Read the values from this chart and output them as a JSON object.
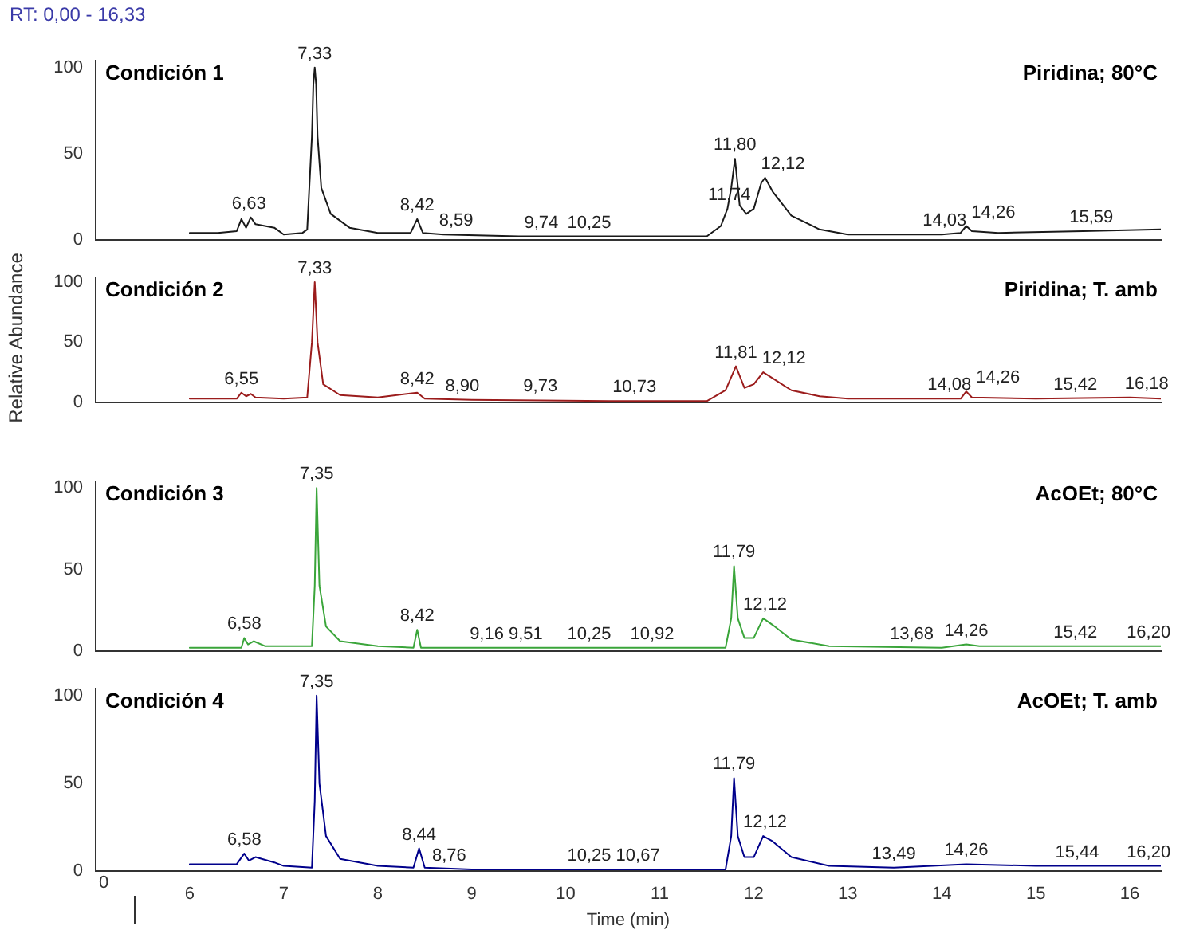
{
  "chart_data": [
    {
      "type": "line",
      "title": "Condición 1",
      "subtitle": "Piridina; 80°C",
      "annotations": [
        "RT: 0,00 - 16,33",
        {
          "text": "6,63",
          "x": 6.63,
          "y": 13
        },
        {
          "text": "7,33",
          "x": 7.33,
          "y": 100
        },
        {
          "text": "8,42",
          "x": 8.42,
          "y": 12
        },
        {
          "text": "8,59",
          "x": 8.59,
          "y": 3
        },
        {
          "text": "9,74",
          "x": 9.74,
          "y": 2
        },
        {
          "text": "10,25",
          "x": 10.25,
          "y": 2
        },
        {
          "text": "11,74",
          "x": 11.74,
          "y": 18
        },
        {
          "text": "11,80",
          "x": 11.8,
          "y": 47
        },
        {
          "text": "12,12",
          "x": 12.12,
          "y": 36
        },
        {
          "text": "14,03",
          "x": 14.03,
          "y": 3
        },
        {
          "text": "14,26",
          "x": 14.26,
          "y": 8
        },
        {
          "text": "15,59",
          "x": 15.59,
          "y": 5
        }
      ],
      "x": [
        6,
        6.3,
        6.5,
        6.55,
        6.6,
        6.65,
        6.7,
        6.9,
        7,
        7.2,
        7.25,
        7.3,
        7.315,
        7.33,
        7.345,
        7.36,
        7.4,
        7.5,
        7.7,
        8,
        8.35,
        8.42,
        8.48,
        8.7,
        9.5,
        10.5,
        11.5,
        11.65,
        11.72,
        11.76,
        11.8,
        11.85,
        11.92,
        12,
        12.08,
        12.12,
        12.2,
        12.4,
        12.7,
        13,
        14,
        14.2,
        14.26,
        14.32,
        14.6,
        15.5,
        16.33
      ],
      "series": [
        {
          "color": "#1a1a1a",
          "values": [
            4,
            4,
            5,
            12,
            7,
            13,
            9,
            7,
            3,
            4,
            6,
            60,
            90,
            100,
            90,
            60,
            30,
            15,
            7,
            4,
            4,
            12,
            4,
            3,
            2,
            2,
            2,
            8,
            18,
            30,
            47,
            20,
            15,
            18,
            33,
            36,
            28,
            14,
            6,
            3,
            3,
            4,
            8,
            5,
            4,
            5,
            6
          ]
        }
      ],
      "xlim": [
        5,
        16.33
      ],
      "xticks": [
        6,
        7,
        8,
        9,
        10,
        11,
        12,
        13,
        14,
        15,
        16
      ],
      "ylim": [
        0,
        104
      ],
      "yticks": [
        0,
        50,
        100
      ],
      "tick_labels": "y",
      "marker": "none"
    },
    {
      "type": "line",
      "title": "Condición 2",
      "subtitle": "Piridina; T. amb",
      "ylabel": "Relative Abundance",
      "annotations": [
        {
          "text": "6,55",
          "x": 6.55,
          "y": 8
        },
        {
          "text": "7,33",
          "x": 7.33,
          "y": 100
        },
        {
          "text": "8,42",
          "x": 8.42,
          "y": 8
        },
        {
          "text": "8,90",
          "x": 8.9,
          "y": 2
        },
        {
          "text": "9,73",
          "x": 9.73,
          "y": 2
        },
        {
          "text": "10,73",
          "x": 10.73,
          "y": 1
        },
        {
          "text": "11,81",
          "x": 11.81,
          "y": 30
        },
        {
          "text": "12,12",
          "x": 12.12,
          "y": 25
        },
        {
          "text": "14,08",
          "x": 14.08,
          "y": 3
        },
        {
          "text": "14,26",
          "x": 14.26,
          "y": 9
        },
        {
          "text": "15,42",
          "x": 15.42,
          "y": 3
        },
        {
          "text": "16,18",
          "x": 16.18,
          "y": 4
        }
      ],
      "x": [
        6,
        6.5,
        6.55,
        6.6,
        6.65,
        6.7,
        7,
        7.25,
        7.3,
        7.33,
        7.36,
        7.42,
        7.6,
        8,
        8.42,
        8.5,
        9,
        10.5,
        11.5,
        11.7,
        11.81,
        11.9,
        12,
        12.1,
        12.2,
        12.4,
        12.7,
        13,
        14.2,
        14.26,
        14.32,
        15,
        16,
        16.33
      ],
      "series": [
        {
          "color": "#9b1c1c",
          "values": [
            3,
            3,
            8,
            5,
            7,
            4,
            3,
            4,
            50,
            100,
            50,
            15,
            6,
            4,
            8,
            3,
            2,
            1,
            1,
            10,
            30,
            12,
            15,
            25,
            20,
            10,
            5,
            3,
            3,
            9,
            4,
            3,
            4,
            3
          ]
        }
      ],
      "xlim": [
        5,
        16.33
      ],
      "xticks": [
        6,
        7,
        8,
        9,
        10,
        11,
        12,
        13,
        14,
        15,
        16
      ],
      "ylim": [
        0,
        104
      ],
      "yticks": [
        0,
        50,
        100
      ],
      "tick_labels": "y",
      "marker": "none"
    },
    {
      "type": "line",
      "title": "Condición 3",
      "subtitle": "AcOEt; 80°C",
      "annotations": [
        {
          "text": "6,58",
          "x": 6.58,
          "y": 8
        },
        {
          "text": "7,35",
          "x": 7.35,
          "y": 100
        },
        {
          "text": "8,42",
          "x": 8.42,
          "y": 13
        },
        {
          "text": "9,16",
          "x": 9.16,
          "y": 2
        },
        {
          "text": "9,51",
          "x": 9.51,
          "y": 2
        },
        {
          "text": "10,25",
          "x": 10.25,
          "y": 2
        },
        {
          "text": "10,92",
          "x": 10.92,
          "y": 2
        },
        {
          "text": "11,79",
          "x": 11.79,
          "y": 52
        },
        {
          "text": "12,12",
          "x": 12.12,
          "y": 20
        },
        {
          "text": "13,68",
          "x": 13.68,
          "y": 2
        },
        {
          "text": "14,26",
          "x": 14.26,
          "y": 4
        },
        {
          "text": "15,42",
          "x": 15.42,
          "y": 3
        },
        {
          "text": "16,20",
          "x": 16.2,
          "y": 3
        }
      ],
      "x": [
        6,
        6.55,
        6.58,
        6.62,
        6.68,
        6.8,
        7.3,
        7.33,
        7.35,
        7.38,
        7.45,
        7.6,
        8,
        8.38,
        8.42,
        8.46,
        9,
        11.7,
        11.76,
        11.79,
        11.83,
        11.9,
        12,
        12.1,
        12.2,
        12.4,
        12.8,
        14,
        14.26,
        14.4,
        16.33
      ],
      "series": [
        {
          "color": "#3aa53a",
          "values": [
            2,
            2,
            8,
            4,
            6,
            3,
            3,
            40,
            100,
            40,
            15,
            6,
            3,
            2,
            13,
            2,
            2,
            2,
            20,
            52,
            20,
            8,
            8,
            20,
            16,
            7,
            3,
            2,
            4,
            3,
            3
          ]
        }
      ],
      "xlim": [
        5,
        16.33
      ],
      "xticks": [
        6,
        7,
        8,
        9,
        10,
        11,
        12,
        13,
        14,
        15,
        16
      ],
      "ylim": [
        0,
        104
      ],
      "yticks": [
        0,
        50,
        100
      ],
      "tick_labels": "y",
      "marker": "none"
    },
    {
      "type": "line",
      "title": "Condición 4",
      "subtitle": "AcOEt; T. amb",
      "xlabel": "Time (min)",
      "annotations": [
        "0",
        {
          "text": "6,58",
          "x": 6.58,
          "y": 10
        },
        {
          "text": "7,35",
          "x": 7.35,
          "y": 100
        },
        {
          "text": "8,44",
          "x": 8.44,
          "y": 13
        },
        {
          "text": "8,76",
          "x": 8.76,
          "y": 1
        },
        {
          "text": "10,25",
          "x": 10.25,
          "y": 1
        },
        {
          "text": "10,67",
          "x": 10.67,
          "y": 1
        },
        {
          "text": "11,79",
          "x": 11.79,
          "y": 53
        },
        {
          "text": "12,12",
          "x": 12.12,
          "y": 20
        },
        {
          "text": "13,49",
          "x": 13.49,
          "y": 2
        },
        {
          "text": "14,26",
          "x": 14.26,
          "y": 4
        },
        {
          "text": "15,44",
          "x": 15.44,
          "y": 3
        },
        {
          "text": "16,20",
          "x": 16.2,
          "y": 3
        }
      ],
      "x": [
        6,
        6.5,
        6.58,
        6.63,
        6.7,
        6.9,
        7,
        7.3,
        7.33,
        7.35,
        7.38,
        7.45,
        7.6,
        8,
        8.38,
        8.44,
        8.5,
        9,
        11.7,
        11.76,
        11.79,
        11.83,
        11.9,
        12,
        12.1,
        12.2,
        12.4,
        12.8,
        13.49,
        14.26,
        15,
        16.33
      ],
      "series": [
        {
          "color": "#00008b",
          "values": [
            4,
            4,
            10,
            6,
            8,
            5,
            3,
            2,
            40,
            100,
            50,
            20,
            7,
            3,
            2,
            13,
            2,
            1,
            1,
            20,
            53,
            20,
            8,
            8,
            20,
            17,
            8,
            3,
            2,
            4,
            3,
            3
          ]
        }
      ],
      "xlim": [
        5,
        16.33
      ],
      "xticks": [
        6,
        7,
        8,
        9,
        10,
        11,
        12,
        13,
        14,
        15,
        16
      ],
      "ylim": [
        0,
        104
      ],
      "yticks": [
        0,
        50,
        100
      ],
      "marker": "none"
    }
  ]
}
